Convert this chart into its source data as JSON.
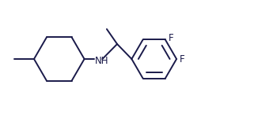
{
  "background_color": "#ffffff",
  "line_color": "#1a1a4a",
  "label_color": "#1a1a4a",
  "font_size": 8.5,
  "nh_label": "NH",
  "f_label_1": "F",
  "f_label_2": "F",
  "figsize": [
    3.5,
    1.5
  ],
  "dpi": 100,
  "xlim": [
    0,
    10
  ],
  "ylim": [
    0,
    4.3
  ]
}
